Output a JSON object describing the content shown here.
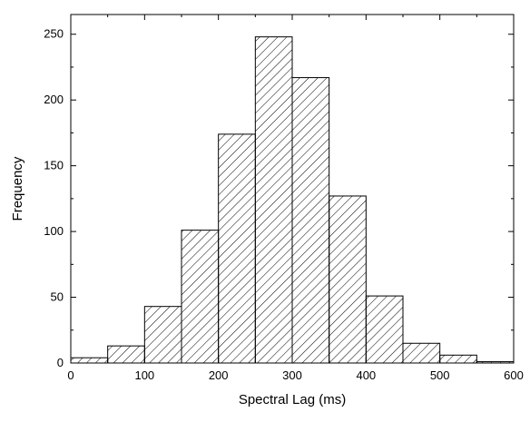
{
  "chart_data": {
    "type": "bar",
    "title": "",
    "xlabel": "Spectral Lag (ms)",
    "ylabel": "Frequency",
    "xlim": [
      0,
      600
    ],
    "ylim": [
      0,
      265
    ],
    "bin_width": 50,
    "bins": [
      {
        "start": 0,
        "end": 50,
        "value": 4
      },
      {
        "start": 50,
        "end": 100,
        "value": 13
      },
      {
        "start": 100,
        "end": 150,
        "value": 43
      },
      {
        "start": 150,
        "end": 200,
        "value": 101
      },
      {
        "start": 200,
        "end": 250,
        "value": 174
      },
      {
        "start": 250,
        "end": 300,
        "value": 248
      },
      {
        "start": 300,
        "end": 350,
        "value": 217
      },
      {
        "start": 350,
        "end": 400,
        "value": 127
      },
      {
        "start": 400,
        "end": 450,
        "value": 51
      },
      {
        "start": 450,
        "end": 500,
        "value": 15
      },
      {
        "start": 500,
        "end": 550,
        "value": 6
      },
      {
        "start": 550,
        "end": 600,
        "value": 1
      }
    ],
    "xticks": [
      0,
      100,
      200,
      300,
      400,
      500,
      600
    ],
    "xtick_labels": [
      "0",
      "100",
      "200",
      "300",
      "400",
      "500",
      "600"
    ],
    "yticks": [
      0,
      50,
      100,
      150,
      200,
      250
    ],
    "ytick_labels": [
      "0",
      "50",
      "100",
      "150",
      "200",
      "250"
    ],
    "grid": false,
    "bar_fill": "diagonal-hatch",
    "bar_stroke": "#000000",
    "hatch_color": "#000000",
    "background": "#ffffff"
  }
}
